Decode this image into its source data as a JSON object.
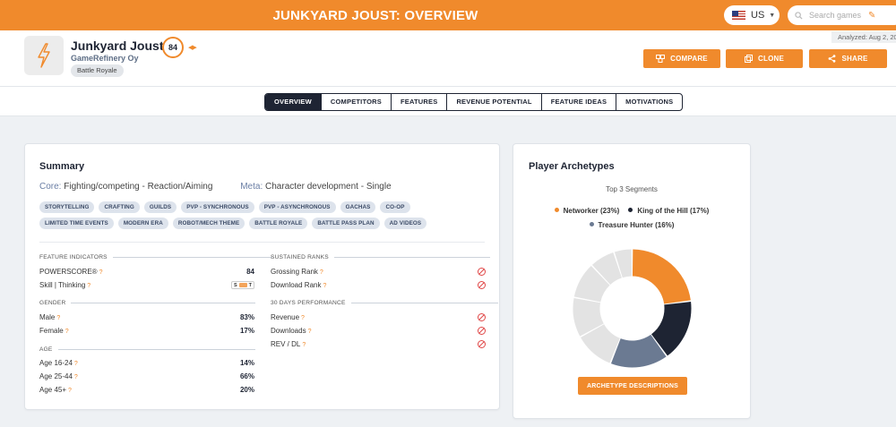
{
  "page_title": "JUNKYARD JOUST: OVERVIEW",
  "region": {
    "code": "US"
  },
  "search": {
    "placeholder": "Search games"
  },
  "analyzed": "Analyzed: Aug 2, 20",
  "game": {
    "name": "Junkyard Joust",
    "developer": "GameRefinery Oy",
    "genre": "Battle Royale",
    "score": "84"
  },
  "actions": {
    "compare": "COMPARE",
    "clone": "CLONE",
    "share": "SHARE"
  },
  "tabs": [
    {
      "label": "OVERVIEW",
      "active": true
    },
    {
      "label": "COMPETITORS",
      "active": false
    },
    {
      "label": "FEATURES",
      "active": false
    },
    {
      "label": "REVENUE POTENTIAL",
      "active": false
    },
    {
      "label": "FEATURE IDEAS",
      "active": false
    },
    {
      "label": "MOTIVATIONS",
      "active": false
    }
  ],
  "summary": {
    "title": "Summary",
    "core_label": "Core:",
    "core_value": "Fighting/competing - Reaction/Aiming",
    "meta_label": "Meta:",
    "meta_value": "Character development - Single",
    "tags": [
      "STORYTELLING",
      "CRAFTING",
      "GUILDS",
      "PVP - SYNCHRONOUS",
      "PVP - ASYNCHRONOUS",
      "GACHAS",
      "CO-OP",
      "LIMITED TIME EVENTS",
      "MODERN ERA",
      "ROBOT/MECH THEME",
      "BATTLE ROYALE",
      "BATTLE PASS PLAN",
      "AD VIDEOS"
    ],
    "feature_indicators": {
      "label": "FEATURE INDICATORS",
      "powerscore_label": "POWERSCORE®",
      "powerscore_value": "84",
      "skill_label": "Skill | Thinking",
      "skill_s": "S",
      "skill_t": "T",
      "skill_level": 0.55
    },
    "gender": {
      "label": "GENDER",
      "rows": [
        {
          "label": "Male",
          "value": "83%"
        },
        {
          "label": "Female",
          "value": "17%"
        }
      ]
    },
    "age": {
      "label": "AGE",
      "rows": [
        {
          "label": "Age 16-24",
          "value": "14%"
        },
        {
          "label": "Age 25-44",
          "value": "66%"
        },
        {
          "label": "Age 45+",
          "value": "20%"
        }
      ]
    },
    "sustained_ranks": {
      "label": "SUSTAINED RANKS",
      "rows": [
        {
          "label": "Grossing Rank"
        },
        {
          "label": "Download Rank"
        }
      ]
    },
    "performance": {
      "label": "30 DAYS PERFORMANCE",
      "rows": [
        {
          "label": "Revenue"
        },
        {
          "label": "Downloads"
        },
        {
          "label": "REV / DL"
        }
      ]
    }
  },
  "archetypes": {
    "title": "Player Archetypes",
    "subtitle": "Top 3 Segments",
    "legend": [
      {
        "label": "Networker (23%)",
        "color": "#f08a2c"
      },
      {
        "label": "King of the Hill (17%)",
        "color": "#1e2433"
      },
      {
        "label": "Treasure Hunter (16%)",
        "color": "#6b7a92"
      }
    ],
    "segments": [
      {
        "value": 23,
        "color": "#f08a2c"
      },
      {
        "value": 17,
        "color": "#1e2433"
      },
      {
        "value": 16,
        "color": "#6b7a92"
      },
      {
        "value": 11,
        "color": "#e3e3e3"
      },
      {
        "value": 11,
        "color": "#e3e3e3"
      },
      {
        "value": 10,
        "color": "#e3e3e3"
      },
      {
        "value": 7,
        "color": "#e3e3e3"
      },
      {
        "value": 5,
        "color": "#e3e3e3"
      }
    ],
    "button": "ARCHETYPE DESCRIPTIONS"
  }
}
